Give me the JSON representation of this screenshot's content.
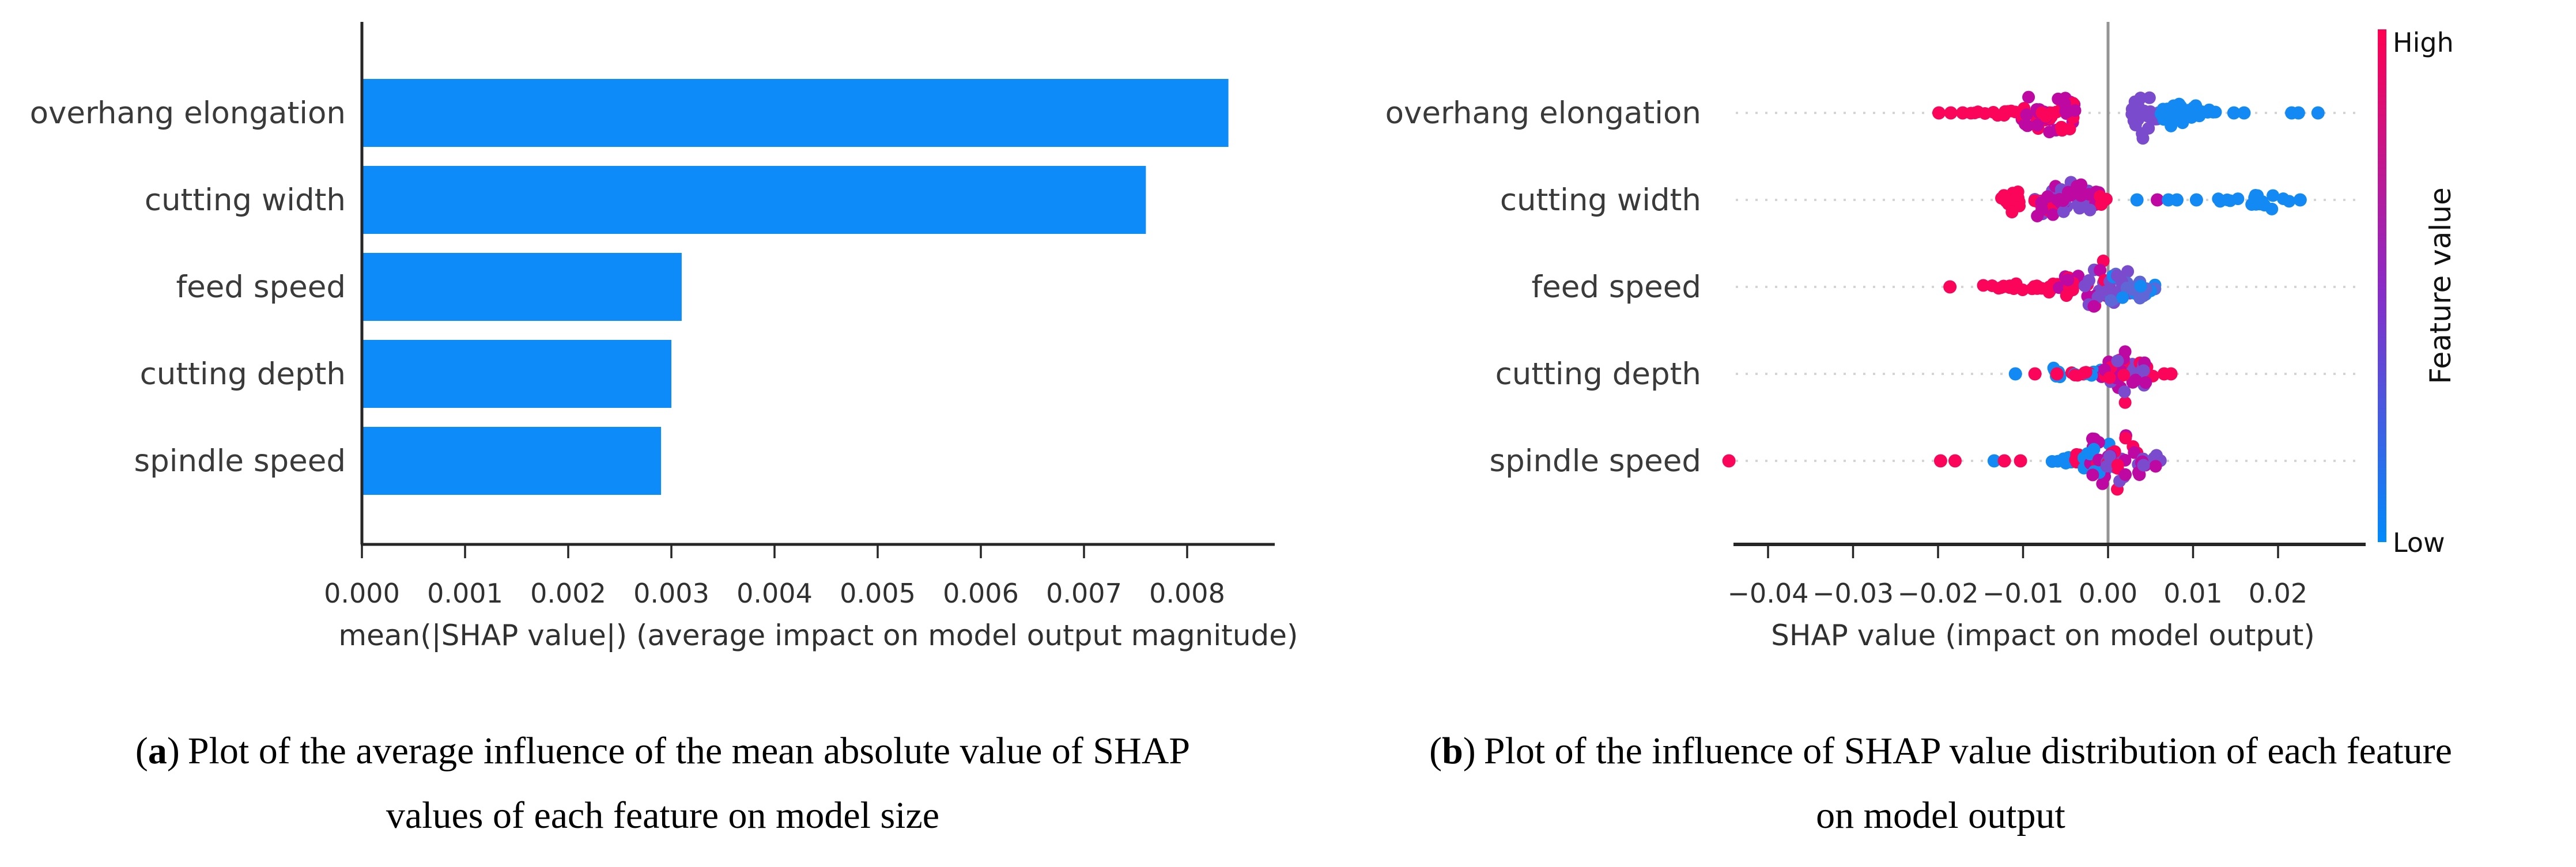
{
  "palette": {
    "bar_blue": "#0c8bf9",
    "red": "#fa0559",
    "magenta": "#bd08a2",
    "purple": "#7a4bcd",
    "slate": "#5f66d6",
    "blue": "#1289f3",
    "axis": "#262626",
    "tick_text": "#303030",
    "label_text": "#3a3a3a",
    "grid_dotted": "#d4d4d4",
    "zero_line": "#949494",
    "cbar_top": "#ff0051",
    "cbar_mid": "#8b2bc6",
    "cbar_bottom": "#008bfb"
  },
  "figure": {
    "captions": {
      "a": {
        "open": "(",
        "letter": "a",
        "close": ")",
        "line1": "Plot of the average influence of the mean absolute value of SHAP",
        "line2": "values of each feature on model size"
      },
      "b": {
        "open": "(",
        "letter": "b",
        "close": ")",
        "line1": "Plot of the influence of SHAP value distribution of each feature",
        "line2": "on model output"
      }
    }
  },
  "chart_data": [
    {
      "id": "mean-abs-shap-bar",
      "type": "bar",
      "orientation": "horizontal",
      "categories": [
        "overhang elongation",
        "cutting width",
        "feed speed",
        "cutting depth",
        "spindle speed"
      ],
      "values": [
        0.0084,
        0.0076,
        0.0031,
        0.003,
        0.0029
      ],
      "xlabel": "mean(|SHAP value|) (average impact on model output magnitude)",
      "xlim": [
        0,
        0.0089
      ],
      "xticks": [
        0,
        0.001,
        0.002,
        0.003,
        0.004,
        0.005,
        0.006,
        0.007,
        0.008
      ],
      "xtick_labels": [
        "0.000",
        "0.001",
        "0.002",
        "0.003",
        "0.004",
        "0.005",
        "0.006",
        "0.007",
        "0.008"
      ],
      "grid": false,
      "bar_color_key": "bar_blue"
    },
    {
      "id": "shap-beeswarm",
      "type": "scatter",
      "xlabel": "SHAP value (impact on model output)",
      "xlim": [
        -0.0475,
        0.0265
      ],
      "xticks": [
        -0.04,
        -0.03,
        -0.02,
        -0.01,
        0,
        0.01,
        0.02
      ],
      "xtick_labels": [
        "−0.04",
        "−0.03",
        "−0.02",
        "−0.01",
        "0.00",
        "0.01",
        "0.02"
      ],
      "zero_line": 0,
      "grid": "dotted-rows",
      "colorbar": {
        "high_label": "High",
        "low_label": "Low",
        "title": "Feature value",
        "top_color_key": "cbar_top",
        "mid_color_key": "cbar_mid",
        "bottom_color_key": "cbar_bottom"
      },
      "rows": [
        {
          "name": "overhang elongation",
          "clusters": [
            {
              "x0": -0.0162,
              "x1": -0.0104,
              "n": 11,
              "spread": 7,
              "colors": [
                "red"
              ]
            },
            {
              "x0": -0.0106,
              "x1": -0.0066,
              "n": 24,
              "spread": 40,
              "colors": [
                "red",
                "red",
                "magenta"
              ]
            },
            {
              "x0": -0.0078,
              "x1": -0.0038,
              "n": 34,
              "spread": 66,
              "colors": [
                "magenta",
                "red"
              ]
            },
            {
              "x0": 0.0028,
              "x1": 0.0052,
              "n": 18,
              "spread": 58,
              "colors": [
                "purple"
              ]
            },
            {
              "x0": 0.0048,
              "x1": 0.0068,
              "n": 8,
              "spread": 26,
              "colors": [
                "purple",
                "slate",
                "blue"
              ]
            },
            {
              "x0": 0.0062,
              "x1": 0.0108,
              "n": 26,
              "spread": 32,
              "colors": [
                "blue"
              ]
            },
            {
              "x0": 0.0106,
              "x1": 0.013,
              "n": 5,
              "spread": 10,
              "colors": [
                "blue"
              ]
            }
          ],
          "points": [
            {
              "x": -0.0199,
              "color": "red"
            },
            {
              "x": -0.0185,
              "color": "red"
            },
            {
              "x": -0.0171,
              "color": "red"
            },
            {
              "x": 0.0148,
              "color": "blue"
            },
            {
              "x": 0.016,
              "color": "blue"
            },
            {
              "x": 0.0216,
              "color": "blue"
            },
            {
              "x": 0.0224,
              "color": "blue"
            },
            {
              "x": 0.0247,
              "color": "blue"
            }
          ]
        },
        {
          "name": "cutting width",
          "clusters": [
            {
              "x0": -0.0126,
              "x1": -0.0103,
              "n": 13,
              "spread": 42,
              "colors": [
                "red"
              ]
            },
            {
              "x0": -0.0088,
              "x1": -0.0056,
              "n": 20,
              "spread": 52,
              "colors": [
                "red",
                "purple",
                "magenta"
              ]
            },
            {
              "x0": -0.0058,
              "x1": -0.002,
              "n": 28,
              "spread": 58,
              "colors": [
                "magenta",
                "purple"
              ]
            },
            {
              "x0": -0.0024,
              "x1": -0.0002,
              "n": 10,
              "spread": 30,
              "colors": [
                "magenta",
                "red",
                "purple"
              ]
            },
            {
              "x0": 0.0121,
              "x1": 0.0154,
              "n": 5,
              "spread": 10,
              "colors": [
                "blue"
              ]
            },
            {
              "x0": 0.016,
              "x1": 0.0213,
              "n": 13,
              "spread": 26,
              "colors": [
                "blue"
              ]
            }
          ],
          "points": [
            {
              "x": -0.0004,
              "color": "red"
            },
            {
              "x": 0.0034,
              "color": "blue"
            },
            {
              "x": 0.0058,
              "color": "magenta"
            },
            {
              "x": 0.0071,
              "color": "blue"
            },
            {
              "x": 0.0081,
              "color": "blue"
            },
            {
              "x": 0.0104,
              "color": "blue"
            },
            {
              "x": 0.0226,
              "color": "blue"
            }
          ]
        },
        {
          "name": "feed speed",
          "clusters": [
            {
              "x0": -0.0149,
              "x1": -0.0121,
              "n": 7,
              "spread": 7,
              "colors": [
                "red"
              ]
            },
            {
              "x0": -0.0117,
              "x1": -0.0089,
              "n": 7,
              "spread": 9,
              "colors": [
                "red"
              ]
            },
            {
              "x0": -0.0087,
              "x1": -0.0056,
              "n": 12,
              "spread": 16,
              "colors": [
                "red"
              ]
            },
            {
              "x0": -0.0058,
              "x1": -0.0028,
              "n": 17,
              "spread": 28,
              "colors": [
                "red",
                "red",
                "magenta"
              ]
            },
            {
              "x0": -0.003,
              "x1": 0.0002,
              "n": 26,
              "spread": 62,
              "colors": [
                "magenta",
                "red",
                "purple"
              ]
            },
            {
              "x0": 0.0,
              "x1": 0.003,
              "n": 22,
              "spread": 48,
              "colors": [
                "blue",
                "slate",
                "purple"
              ]
            },
            {
              "x0": 0.0026,
              "x1": 0.0056,
              "n": 14,
              "spread": 30,
              "colors": [
                "blue",
                "slate"
              ]
            }
          ],
          "points": [
            {
              "x": -0.0186,
              "color": "red"
            }
          ]
        },
        {
          "name": "cutting depth",
          "clusters": [
            {
              "x0": -0.0072,
              "x1": -0.0049,
              "n": 8,
              "spread": 15,
              "colors": [
                "blue"
              ]
            },
            {
              "x0": -0.0043,
              "x1": -0.0026,
              "n": 5,
              "spread": 8,
              "colors": [
                "red",
                "blue"
              ]
            },
            {
              "x0": -0.0028,
              "x1": -0.0002,
              "n": 13,
              "spread": 17,
              "colors": [
                "red",
                "blue",
                "magenta"
              ]
            },
            {
              "x0": -0.0004,
              "x1": 0.0032,
              "n": 32,
              "spread": 80,
              "colors": [
                "purple",
                "magenta",
                "red"
              ]
            },
            {
              "x0": 0.0028,
              "x1": 0.0056,
              "n": 15,
              "spread": 36,
              "colors": [
                "magenta",
                "purple",
                "red"
              ]
            }
          ],
          "points": [
            {
              "x": -0.0109,
              "color": "blue"
            },
            {
              "x": -0.0086,
              "color": "red"
            },
            {
              "x": -0.006,
              "color": "red"
            },
            {
              "x": 0.0066,
              "color": "red"
            },
            {
              "x": 0.0074,
              "color": "red"
            }
          ]
        },
        {
          "name": "spindle speed",
          "clusters": [
            {
              "x0": -0.0067,
              "x1": -0.0041,
              "n": 8,
              "spread": 13,
              "colors": [
                "blue"
              ]
            },
            {
              "x0": -0.0043,
              "x1": -0.0018,
              "n": 8,
              "spread": 22,
              "colors": [
                "blue",
                "red"
              ]
            },
            {
              "x0": -0.0031,
              "x1": 0.0008,
              "n": 28,
              "spread": 66,
              "colors": [
                "red",
                "magenta",
                "blue"
              ]
            },
            {
              "x0": -0.0002,
              "x1": 0.0044,
              "n": 32,
              "spread": 78,
              "colors": [
                "red",
                "magenta",
                "purple"
              ]
            },
            {
              "x0": 0.004,
              "x1": 0.0062,
              "n": 9,
              "spread": 32,
              "colors": [
                "magenta",
                "purple"
              ]
            }
          ],
          "points": [
            {
              "x": -0.0446,
              "color": "red"
            },
            {
              "x": -0.0197,
              "color": "red"
            },
            {
              "x": -0.018,
              "color": "red"
            },
            {
              "x": -0.0134,
              "color": "blue"
            },
            {
              "x": -0.0122,
              "color": "red"
            },
            {
              "x": -0.0103,
              "color": "red"
            }
          ]
        }
      ]
    }
  ]
}
